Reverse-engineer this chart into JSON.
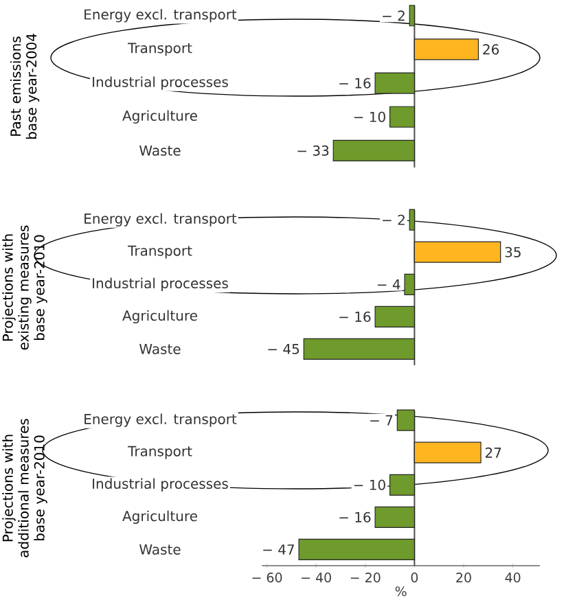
{
  "chart_data": [
    {
      "type": "bar",
      "orientation": "horizontal",
      "ylabel": "Past emissions base year-2004",
      "categories": [
        "Energy excl. transport",
        "Transport",
        "Industrial processes",
        "Agriculture",
        "Waste"
      ],
      "values": [
        -2,
        26,
        -16,
        -10,
        -33
      ],
      "colors": [
        "#6f9a2c",
        "#ffb520",
        "#6f9a2c",
        "#6f9a2c",
        "#6f9a2c"
      ],
      "value_labels": [
        "− 2",
        "26",
        "− 16",
        "− 10",
        "− 33"
      ],
      "tick_labels": "y"
    },
    {
      "type": "bar",
      "orientation": "horizontal",
      "ylabel": "Projections with existing measures base year-2010",
      "categories": [
        "Energy excl. transport",
        "Transport",
        "Industrial processes",
        "Agriculture",
        "Waste"
      ],
      "values": [
        -2,
        35,
        -4,
        -16,
        -45
      ],
      "colors": [
        "#6f9a2c",
        "#ffb520",
        "#6f9a2c",
        "#6f9a2c",
        "#6f9a2c"
      ],
      "value_labels": [
        "− 2",
        "35",
        "− 4",
        "− 16",
        "− 45"
      ],
      "tick_labels": "y"
    },
    {
      "type": "bar",
      "orientation": "horizontal",
      "ylabel": "Projections with additional measures base year-2010",
      "xlabel": "%",
      "categories": [
        "Energy excl. transport",
        "Transport",
        "Industrial processes",
        "Agriculture",
        "Waste"
      ],
      "values": [
        -7,
        27,
        -10,
        -16,
        -47
      ],
      "colors": [
        "#6f9a2c",
        "#ffb520",
        "#6f9a2c",
        "#6f9a2c",
        "#6f9a2c"
      ],
      "value_labels": [
        "− 7",
        "27",
        "− 10",
        "− 16",
        "− 47"
      ],
      "xlim": [
        -62,
        51
      ],
      "xticks": [
        {
          "value": -60,
          "label": "− 60"
        },
        {
          "value": -40,
          "label": "− 40"
        },
        {
          "value": -20,
          "label": "− 20"
        },
        0,
        20,
        40
      ]
    }
  ]
}
